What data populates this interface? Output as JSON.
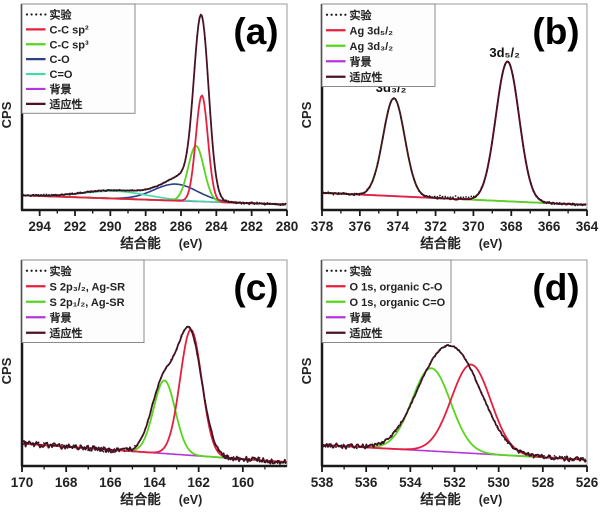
{
  "figure_title": "XPS spectra figure with four fitted panels",
  "colors": {
    "experiment": "#1a1a1a",
    "component_red": "#e4203e",
    "component_green": "#58d51f",
    "component_navy": "#2b3f8c",
    "component_aqua": "#43dba2",
    "background_violet": "#b437d8",
    "fit_dark": "#4b1226",
    "frame_gray": "#999999",
    "axis_black": "#1a1a1a",
    "tick_text": "#222222"
  },
  "chart_data": [
    {
      "id": "a",
      "type": "line",
      "panel_label": "(a)",
      "xlabel": "结合能",
      "xlabel_unit": "(eV)",
      "ylabel": "CPS",
      "x_range": [
        295,
        280
      ],
      "x_ticks": [
        294,
        292,
        290,
        288,
        286,
        284,
        282,
        280
      ],
      "grid": false,
      "legend_position": "top-left",
      "legend": [
        {
          "label": "实验",
          "style": "dots",
          "color_key": "experiment"
        },
        {
          "label": "C-C sp²",
          "style": "line",
          "color_key": "component_red"
        },
        {
          "label": "C-C sp³",
          "style": "line",
          "color_key": "component_green"
        },
        {
          "label": "C-O",
          "style": "line",
          "color_key": "component_navy"
        },
        {
          "label": "C=O",
          "style": "line",
          "color_key": "component_aqua"
        },
        {
          "label": "背景",
          "style": "line",
          "color_key": "background_violet"
        },
        {
          "label": "适应性",
          "style": "line",
          "color_key": "fit_dark"
        }
      ],
      "series": [
        {
          "name": "background",
          "color_key": "background_violet",
          "style": "line",
          "base": [
            0.075,
            0.028
          ],
          "peaks": [],
          "noise": 0,
          "width": 1.6
        },
        {
          "name": "c-o",
          "color_key": "component_navy",
          "style": "line",
          "base": [
            0.075,
            0.028
          ],
          "peaks": [
            [
              286.3,
              0.085,
              2.9
            ]
          ],
          "noise": 0,
          "width": 1.6
        },
        {
          "name": "c-double-bond-o",
          "color_key": "component_aqua",
          "style": "line",
          "base": [
            0.075,
            0.028
          ],
          "peaks": [
            [
              289.7,
              0.038,
              4.2
            ]
          ],
          "noise": 0,
          "width": 1.6
        },
        {
          "name": "c-c-sp3",
          "color_key": "component_green",
          "style": "line",
          "base": [
            0.075,
            0.028
          ],
          "peaks": [
            [
              285.15,
              0.285,
              1.05
            ]
          ],
          "noise": 0,
          "width": 1.8
        },
        {
          "name": "c-c-sp2",
          "color_key": "component_red",
          "style": "line",
          "base": [
            0.075,
            0.028
          ],
          "peaks": [
            [
              284.82,
              0.545,
              0.8
            ]
          ],
          "noise": 0,
          "width": 1.8
        },
        {
          "name": "fit-envelope",
          "color_key": "fit_dark",
          "style": "line",
          "base": [
            0.075,
            0.028
          ],
          "peaks": [
            [
              284.85,
              0.895,
              0.98
            ],
            [
              285.7,
              0.06,
              1.8
            ],
            [
              286.35,
              0.07,
              2.7
            ],
            [
              289.7,
              0.042,
              4.3
            ]
          ],
          "noise": 0.003,
          "width": 1.8
        },
        {
          "name": "experiment",
          "color_key": "experiment",
          "style": "dots",
          "base": [
            0.075,
            0.028
          ],
          "peaks": [
            [
              284.85,
              0.895,
              0.98
            ],
            [
              285.7,
              0.06,
              1.8
            ],
            [
              286.35,
              0.07,
              2.7
            ],
            [
              289.7,
              0.042,
              4.3
            ]
          ],
          "noise": 0.006,
          "width": 1
        }
      ],
      "annotations": []
    },
    {
      "id": "b",
      "type": "line",
      "panel_label": "(b)",
      "xlabel": "结合能",
      "xlabel_unit": "(eV)",
      "ylabel": "CPS",
      "x_range": [
        378,
        364
      ],
      "x_ticks": [
        378,
        376,
        374,
        372,
        370,
        368,
        366,
        364
      ],
      "grid": false,
      "legend_position": "top-left",
      "legend": [
        {
          "label": "实验",
          "style": "dots",
          "color_key": "experiment"
        },
        {
          "label": "Ag 3d₅/₂",
          "style": "line",
          "color_key": "component_red"
        },
        {
          "label": "Ag 3d₃/₂",
          "style": "line",
          "color_key": "component_green"
        },
        {
          "label": "背景",
          "style": "line",
          "color_key": "background_violet"
        },
        {
          "label": "适应性",
          "style": "line",
          "color_key": "fit_dark"
        }
      ],
      "series": [
        {
          "name": "background",
          "color_key": "background_violet",
          "style": "line",
          "base": [
            0.088,
            0.026
          ],
          "peaks": [],
          "noise": 0,
          "width": 1.6
        },
        {
          "name": "ag-3d-3-2",
          "color_key": "component_green",
          "style": "line",
          "base": [
            0.088,
            0.026
          ],
          "peaks": [
            [
              374.2,
              0.502,
              1.35
            ]
          ],
          "noise": 0,
          "width": 1.8
        },
        {
          "name": "ag-3d-5-2",
          "color_key": "component_red",
          "style": "line",
          "base": [
            0.088,
            0.026
          ],
          "peaks": [
            [
              368.2,
              0.717,
              1.45
            ]
          ],
          "noise": 0,
          "width": 1.8
        },
        {
          "name": "fit-envelope",
          "color_key": "fit_dark",
          "style": "line",
          "base": [
            0.088,
            0.026
          ],
          "peaks": [
            [
              374.2,
              0.502,
              1.35
            ],
            [
              368.2,
              0.717,
              1.45
            ]
          ],
          "noise": 0.0035,
          "width": 1.8
        },
        {
          "name": "experiment",
          "color_key": "experiment",
          "style": "dots",
          "base": [
            0.088,
            0.026
          ],
          "peaks": [
            [
              374.2,
              0.502,
              1.35
            ],
            [
              368.2,
              0.717,
              1.45
            ],
            [
              371.0,
              0.012,
              2.0
            ]
          ],
          "noise": 0.007,
          "width": 1
        }
      ],
      "annotations": [
        {
          "text": "3d₃/₂",
          "x": 374.35,
          "v": 0.605
        },
        {
          "text": "3d₅/₂",
          "x": 368.35,
          "v": 0.785
        }
      ]
    },
    {
      "id": "c",
      "type": "line",
      "panel_label": "(c)",
      "xlabel": "结合能",
      "xlabel_unit": "(eV)",
      "ylabel": "CPS",
      "x_range": [
        170,
        158
      ],
      "x_ticks": [
        170,
        168,
        166,
        164,
        162,
        160
      ],
      "grid": false,
      "legend_position": "top-left",
      "legend": [
        {
          "label": "实验",
          "style": "dots",
          "color_key": "experiment"
        },
        {
          "label": "S 2p₃/₂, Ag-SR",
          "style": "line",
          "color_key": "component_red"
        },
        {
          "label": "S 2p₁/₂, Ag-SR",
          "style": "line",
          "color_key": "component_green"
        },
        {
          "label": "背景",
          "style": "line",
          "color_key": "background_violet"
        },
        {
          "label": "适应性",
          "style": "line",
          "color_key": "fit_dark"
        }
      ],
      "series": [
        {
          "name": "background",
          "color_key": "background_violet",
          "style": "line",
          "base": [
            0.115,
            0.02
          ],
          "peaks": [],
          "noise": 0,
          "width": 1.6
        },
        {
          "name": "s-2p-1-2",
          "color_key": "component_green",
          "style": "line",
          "base": [
            0.115,
            0.02
          ],
          "peaks": [
            [
              163.55,
              0.375,
              1.15
            ]
          ],
          "noise": 0,
          "width": 1.8
        },
        {
          "name": "s-2p-3-2",
          "color_key": "component_red",
          "style": "line",
          "base": [
            0.115,
            0.02
          ],
          "peaks": [
            [
              162.35,
              0.645,
              1.15
            ]
          ],
          "noise": 0,
          "width": 1.8
        },
        {
          "name": "fit-envelope",
          "color_key": "fit_dark",
          "style": "line",
          "base": [
            0.115,
            0.02
          ],
          "peaks": [
            [
              162.4,
              0.62,
              1.3
            ],
            [
              163.6,
              0.355,
              1.3
            ]
          ],
          "noise": 0.014,
          "width": 1.8
        },
        {
          "name": "experiment",
          "color_key": "experiment",
          "style": "dots",
          "base": [
            0.115,
            0.02
          ],
          "peaks": [
            [
              162.4,
              0.62,
              1.3
            ],
            [
              163.6,
              0.355,
              1.3
            ]
          ],
          "noise": 0.013,
          "width": 1
        }
      ],
      "annotations": []
    },
    {
      "id": "d",
      "type": "line",
      "panel_label": "(d)",
      "xlabel": "结合能",
      "xlabel_unit": "(eV)",
      "ylabel": "CPS",
      "x_range": [
        538,
        526
      ],
      "x_ticks": [
        538,
        536,
        534,
        532,
        530,
        528,
        526
      ],
      "grid": false,
      "legend_position": "top-left",
      "legend": [
        {
          "label": "实验",
          "style": "dots",
          "color_key": "experiment"
        },
        {
          "label": "O 1s, organic C-O",
          "style": "line",
          "color_key": "component_red"
        },
        {
          "label": "O 1s, organic C=O",
          "style": "line",
          "color_key": "component_green"
        },
        {
          "label": "背景",
          "style": "line",
          "color_key": "background_violet"
        },
        {
          "label": "适应性",
          "style": "line",
          "color_key": "fit_dark"
        }
      ],
      "series": [
        {
          "name": "background",
          "color_key": "background_violet",
          "style": "line",
          "base": [
            0.108,
            0.032
          ],
          "peaks": [],
          "noise": 0,
          "width": 1.6
        },
        {
          "name": "o-1s-c-double-bond-o",
          "color_key": "component_green",
          "style": "line",
          "base": [
            0.108,
            0.032
          ],
          "peaks": [
            [
              533.05,
              0.425,
              2.05
            ]
          ],
          "noise": 0,
          "width": 1.8
        },
        {
          "name": "o-1s-c-o",
          "color_key": "component_red",
          "style": "line",
          "base": [
            0.108,
            0.032
          ],
          "peaks": [
            [
              531.25,
              0.455,
              2.1
            ]
          ],
          "noise": 0,
          "width": 1.8
        },
        {
          "name": "fit-envelope",
          "color_key": "fit_dark",
          "style": "line",
          "base": [
            0.108,
            0.032
          ],
          "peaks": [
            [
              531.45,
              0.345,
              2.4
            ],
            [
              533.0,
              0.345,
              2.4
            ],
            [
              532.2,
              0.03,
              1.6
            ]
          ],
          "noise": 0.013,
          "width": 1.8
        },
        {
          "name": "experiment",
          "color_key": "experiment",
          "style": "dots",
          "base": [
            0.108,
            0.032
          ],
          "peaks": [
            [
              531.45,
              0.345,
              2.4
            ],
            [
              533.0,
              0.345,
              2.4
            ],
            [
              532.2,
              0.03,
              1.6
            ]
          ],
          "noise": 0.011,
          "width": 1
        }
      ],
      "annotations": []
    }
  ]
}
